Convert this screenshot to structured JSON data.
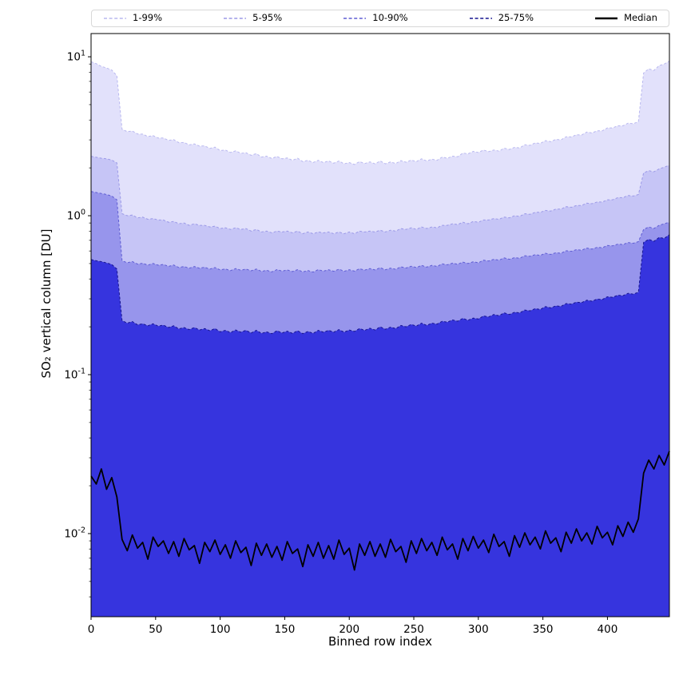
{
  "figure": {
    "background": "#ffffff",
    "frame_color": "#000000"
  },
  "legend": {
    "border_color": "#d8d8d8",
    "position": "top"
  },
  "chart_data": {
    "type": "area",
    "subtype": "percentile-fan-with-median",
    "title": "",
    "xlabel": "Binned row index",
    "ylabel": "SO₂ vertical column [DU]",
    "yscale": "log",
    "grid": false,
    "legend_position": "top-horizontal",
    "xlim": [
      0,
      448
    ],
    "ylim": [
      0.003,
      14
    ],
    "x_step": 4,
    "xticks": [
      0,
      50,
      100,
      150,
      200,
      250,
      300,
      350,
      400
    ],
    "ytick_exponents": [
      1,
      0,
      -1,
      -2
    ],
    "band_fill_note": "each percentile band is filled from its upper-percentile curve down to the bottom axis; lower percentile bounds lie below the y-axis range",
    "series": [
      {
        "name": "1-99%",
        "kind": "band",
        "fill": "#e2e1fb",
        "edge": "#b9b8ef",
        "dash": "3 2.4",
        "values": [
          9.3,
          9.05,
          8.7,
          8.5,
          8.25,
          7.6,
          3.5,
          3.38,
          3.41,
          3.27,
          3.26,
          3.15,
          3.19,
          3.08,
          3.08,
          2.98,
          3.01,
          2.88,
          2.89,
          2.79,
          2.83,
          2.74,
          2.75,
          2.65,
          2.7,
          2.57,
          2.59,
          2.5,
          2.56,
          2.47,
          2.49,
          2.4,
          2.46,
          2.34,
          2.37,
          2.29,
          2.36,
          2.28,
          2.31,
          2.23,
          2.3,
          2.19,
          2.23,
          2.16,
          2.23,
          2.16,
          2.21,
          2.14,
          2.21,
          2.12,
          2.16,
          2.1,
          2.19,
          2.13,
          2.18,
          2.12,
          2.21,
          2.12,
          2.18,
          2.13,
          2.22,
          2.17,
          2.24,
          2.19,
          2.28,
          2.21,
          2.27,
          2.23,
          2.34,
          2.3,
          2.37,
          2.35,
          2.48,
          2.45,
          2.54,
          2.5,
          2.59,
          2.53,
          2.59,
          2.55,
          2.66,
          2.61,
          2.69,
          2.67,
          2.8,
          2.77,
          2.87,
          2.85,
          2.97,
          2.92,
          3.02,
          3.0,
          3.14,
          3.13,
          3.23,
          3.22,
          3.36,
          3.32,
          3.42,
          3.42,
          3.57,
          3.57,
          3.68,
          3.68,
          3.82,
          3.79,
          3.91,
          7.9,
          8.4,
          8.2,
          8.8,
          9.0,
          9.4
        ]
      },
      {
        "name": "5-95%",
        "kind": "band",
        "fill": "#c6c5f6",
        "edge": "#9b99e7",
        "dash": "3 2.4",
        "values": [
          2.36,
          2.33,
          2.3,
          2.28,
          2.24,
          2.15,
          1.03,
          1.0,
          1.01,
          0.97,
          0.98,
          0.95,
          0.96,
          0.94,
          0.94,
          0.91,
          0.92,
          0.89,
          0.9,
          0.87,
          0.89,
          0.87,
          0.87,
          0.85,
          0.86,
          0.83,
          0.84,
          0.82,
          0.84,
          0.82,
          0.83,
          0.8,
          0.82,
          0.79,
          0.8,
          0.78,
          0.8,
          0.79,
          0.8,
          0.78,
          0.8,
          0.77,
          0.79,
          0.77,
          0.79,
          0.78,
          0.79,
          0.77,
          0.79,
          0.77,
          0.79,
          0.77,
          0.8,
          0.79,
          0.8,
          0.79,
          0.81,
          0.79,
          0.81,
          0.8,
          0.83,
          0.82,
          0.84,
          0.82,
          0.85,
          0.83,
          0.85,
          0.84,
          0.87,
          0.87,
          0.89,
          0.88,
          0.91,
          0.89,
          0.92,
          0.91,
          0.94,
          0.94,
          0.96,
          0.95,
          0.98,
          0.97,
          1.0,
          0.99,
          1.03,
          1.02,
          1.05,
          1.05,
          1.08,
          1.07,
          1.1,
          1.1,
          1.14,
          1.13,
          1.16,
          1.16,
          1.2,
          1.19,
          1.22,
          1.22,
          1.26,
          1.26,
          1.3,
          1.3,
          1.34,
          1.33,
          1.36,
          1.86,
          1.92,
          1.89,
          1.97,
          2.02,
          2.08
        ]
      },
      {
        "name": "10-90%",
        "kind": "band",
        "fill": "#9795ec",
        "edge": "#5f5dd3",
        "dash": "3 2.4",
        "values": [
          1.42,
          1.4,
          1.38,
          1.36,
          1.33,
          1.26,
          0.52,
          0.506,
          0.515,
          0.496,
          0.502,
          0.489,
          0.501,
          0.488,
          0.494,
          0.48,
          0.49,
          0.472,
          0.479,
          0.467,
          0.479,
          0.467,
          0.474,
          0.461,
          0.472,
          0.456,
          0.463,
          0.451,
          0.465,
          0.454,
          0.462,
          0.45,
          0.462,
          0.446,
          0.454,
          0.443,
          0.458,
          0.448,
          0.456,
          0.445,
          0.458,
          0.443,
          0.452,
          0.442,
          0.458,
          0.448,
          0.457,
          0.447,
          0.461,
          0.447,
          0.457,
          0.448,
          0.464,
          0.455,
          0.465,
          0.456,
          0.471,
          0.457,
          0.468,
          0.46,
          0.477,
          0.469,
          0.481,
          0.472,
          0.487,
          0.475,
          0.487,
          0.48,
          0.498,
          0.491,
          0.503,
          0.495,
          0.511,
          0.5,
          0.513,
          0.506,
          0.525,
          0.519,
          0.532,
          0.525,
          0.543,
          0.532,
          0.545,
          0.54,
          0.56,
          0.555,
          0.569,
          0.563,
          0.581,
          0.571,
          0.585,
          0.581,
          0.602,
          0.597,
          0.612,
          0.607,
          0.626,
          0.617,
          0.633,
          0.629,
          0.65,
          0.647,
          0.663,
          0.659,
          0.678,
          0.671,
          0.687,
          0.82,
          0.85,
          0.83,
          0.87,
          0.89,
          0.91
        ]
      },
      {
        "name": "25-75%",
        "kind": "band",
        "fill": "#3634de",
        "edge": "#17158f",
        "dash": "3 2.4",
        "values": [
          0.53,
          0.521,
          0.514,
          0.505,
          0.494,
          0.462,
          0.219,
          0.211,
          0.216,
          0.206,
          0.209,
          0.203,
          0.209,
          0.202,
          0.205,
          0.198,
          0.203,
          0.194,
          0.198,
          0.192,
          0.198,
          0.191,
          0.195,
          0.189,
          0.195,
          0.186,
          0.19,
          0.184,
          0.191,
          0.185,
          0.19,
          0.183,
          0.19,
          0.182,
          0.186,
          0.181,
          0.189,
          0.183,
          0.188,
          0.182,
          0.189,
          0.181,
          0.187,
          0.182,
          0.19,
          0.185,
          0.19,
          0.185,
          0.192,
          0.185,
          0.191,
          0.187,
          0.195,
          0.19,
          0.196,
          0.191,
          0.2,
          0.193,
          0.199,
          0.195,
          0.204,
          0.2,
          0.207,
          0.202,
          0.211,
          0.204,
          0.211,
          0.208,
          0.217,
          0.214,
          0.221,
          0.217,
          0.226,
          0.22,
          0.227,
          0.224,
          0.234,
          0.231,
          0.239,
          0.235,
          0.245,
          0.239,
          0.247,
          0.245,
          0.255,
          0.252,
          0.26,
          0.257,
          0.268,
          0.263,
          0.271,
          0.269,
          0.28,
          0.278,
          0.286,
          0.284,
          0.294,
          0.29,
          0.299,
          0.297,
          0.309,
          0.307,
          0.316,
          0.314,
          0.325,
          0.321,
          0.33,
          0.68,
          0.71,
          0.69,
          0.73,
          0.72,
          0.76
        ]
      },
      {
        "name": "Median",
        "kind": "line",
        "color": "#000000",
        "width": 1.8,
        "values": [
          0.023,
          0.0205,
          0.0255,
          0.019,
          0.0225,
          0.017,
          0.0092,
          0.0078,
          0.0098,
          0.0081,
          0.0088,
          0.0069,
          0.0095,
          0.0083,
          0.009,
          0.0075,
          0.0089,
          0.0072,
          0.0093,
          0.0079,
          0.0084,
          0.0065,
          0.0088,
          0.0077,
          0.0091,
          0.0074,
          0.0085,
          0.007,
          0.009,
          0.0076,
          0.0082,
          0.0063,
          0.0087,
          0.0073,
          0.0086,
          0.0071,
          0.0083,
          0.0068,
          0.0089,
          0.0075,
          0.008,
          0.0062,
          0.0085,
          0.0072,
          0.0088,
          0.007,
          0.0084,
          0.0069,
          0.0091,
          0.0074,
          0.0081,
          0.0059,
          0.0086,
          0.0073,
          0.0089,
          0.0072,
          0.0086,
          0.0071,
          0.0092,
          0.0077,
          0.0083,
          0.0066,
          0.009,
          0.0075,
          0.0093,
          0.0078,
          0.0088,
          0.0073,
          0.0095,
          0.0079,
          0.0086,
          0.0069,
          0.0093,
          0.0078,
          0.0096,
          0.0081,
          0.0091,
          0.0076,
          0.0099,
          0.0083,
          0.0089,
          0.0072,
          0.0097,
          0.0082,
          0.0101,
          0.0085,
          0.0095,
          0.008,
          0.0104,
          0.0087,
          0.0094,
          0.0077,
          0.0102,
          0.0087,
          0.0107,
          0.009,
          0.0101,
          0.0086,
          0.0111,
          0.0094,
          0.0102,
          0.0085,
          0.0112,
          0.0096,
          0.0118,
          0.0102,
          0.0124,
          0.024,
          0.029,
          0.0255,
          0.031,
          0.027,
          0.033
        ]
      }
    ]
  }
}
